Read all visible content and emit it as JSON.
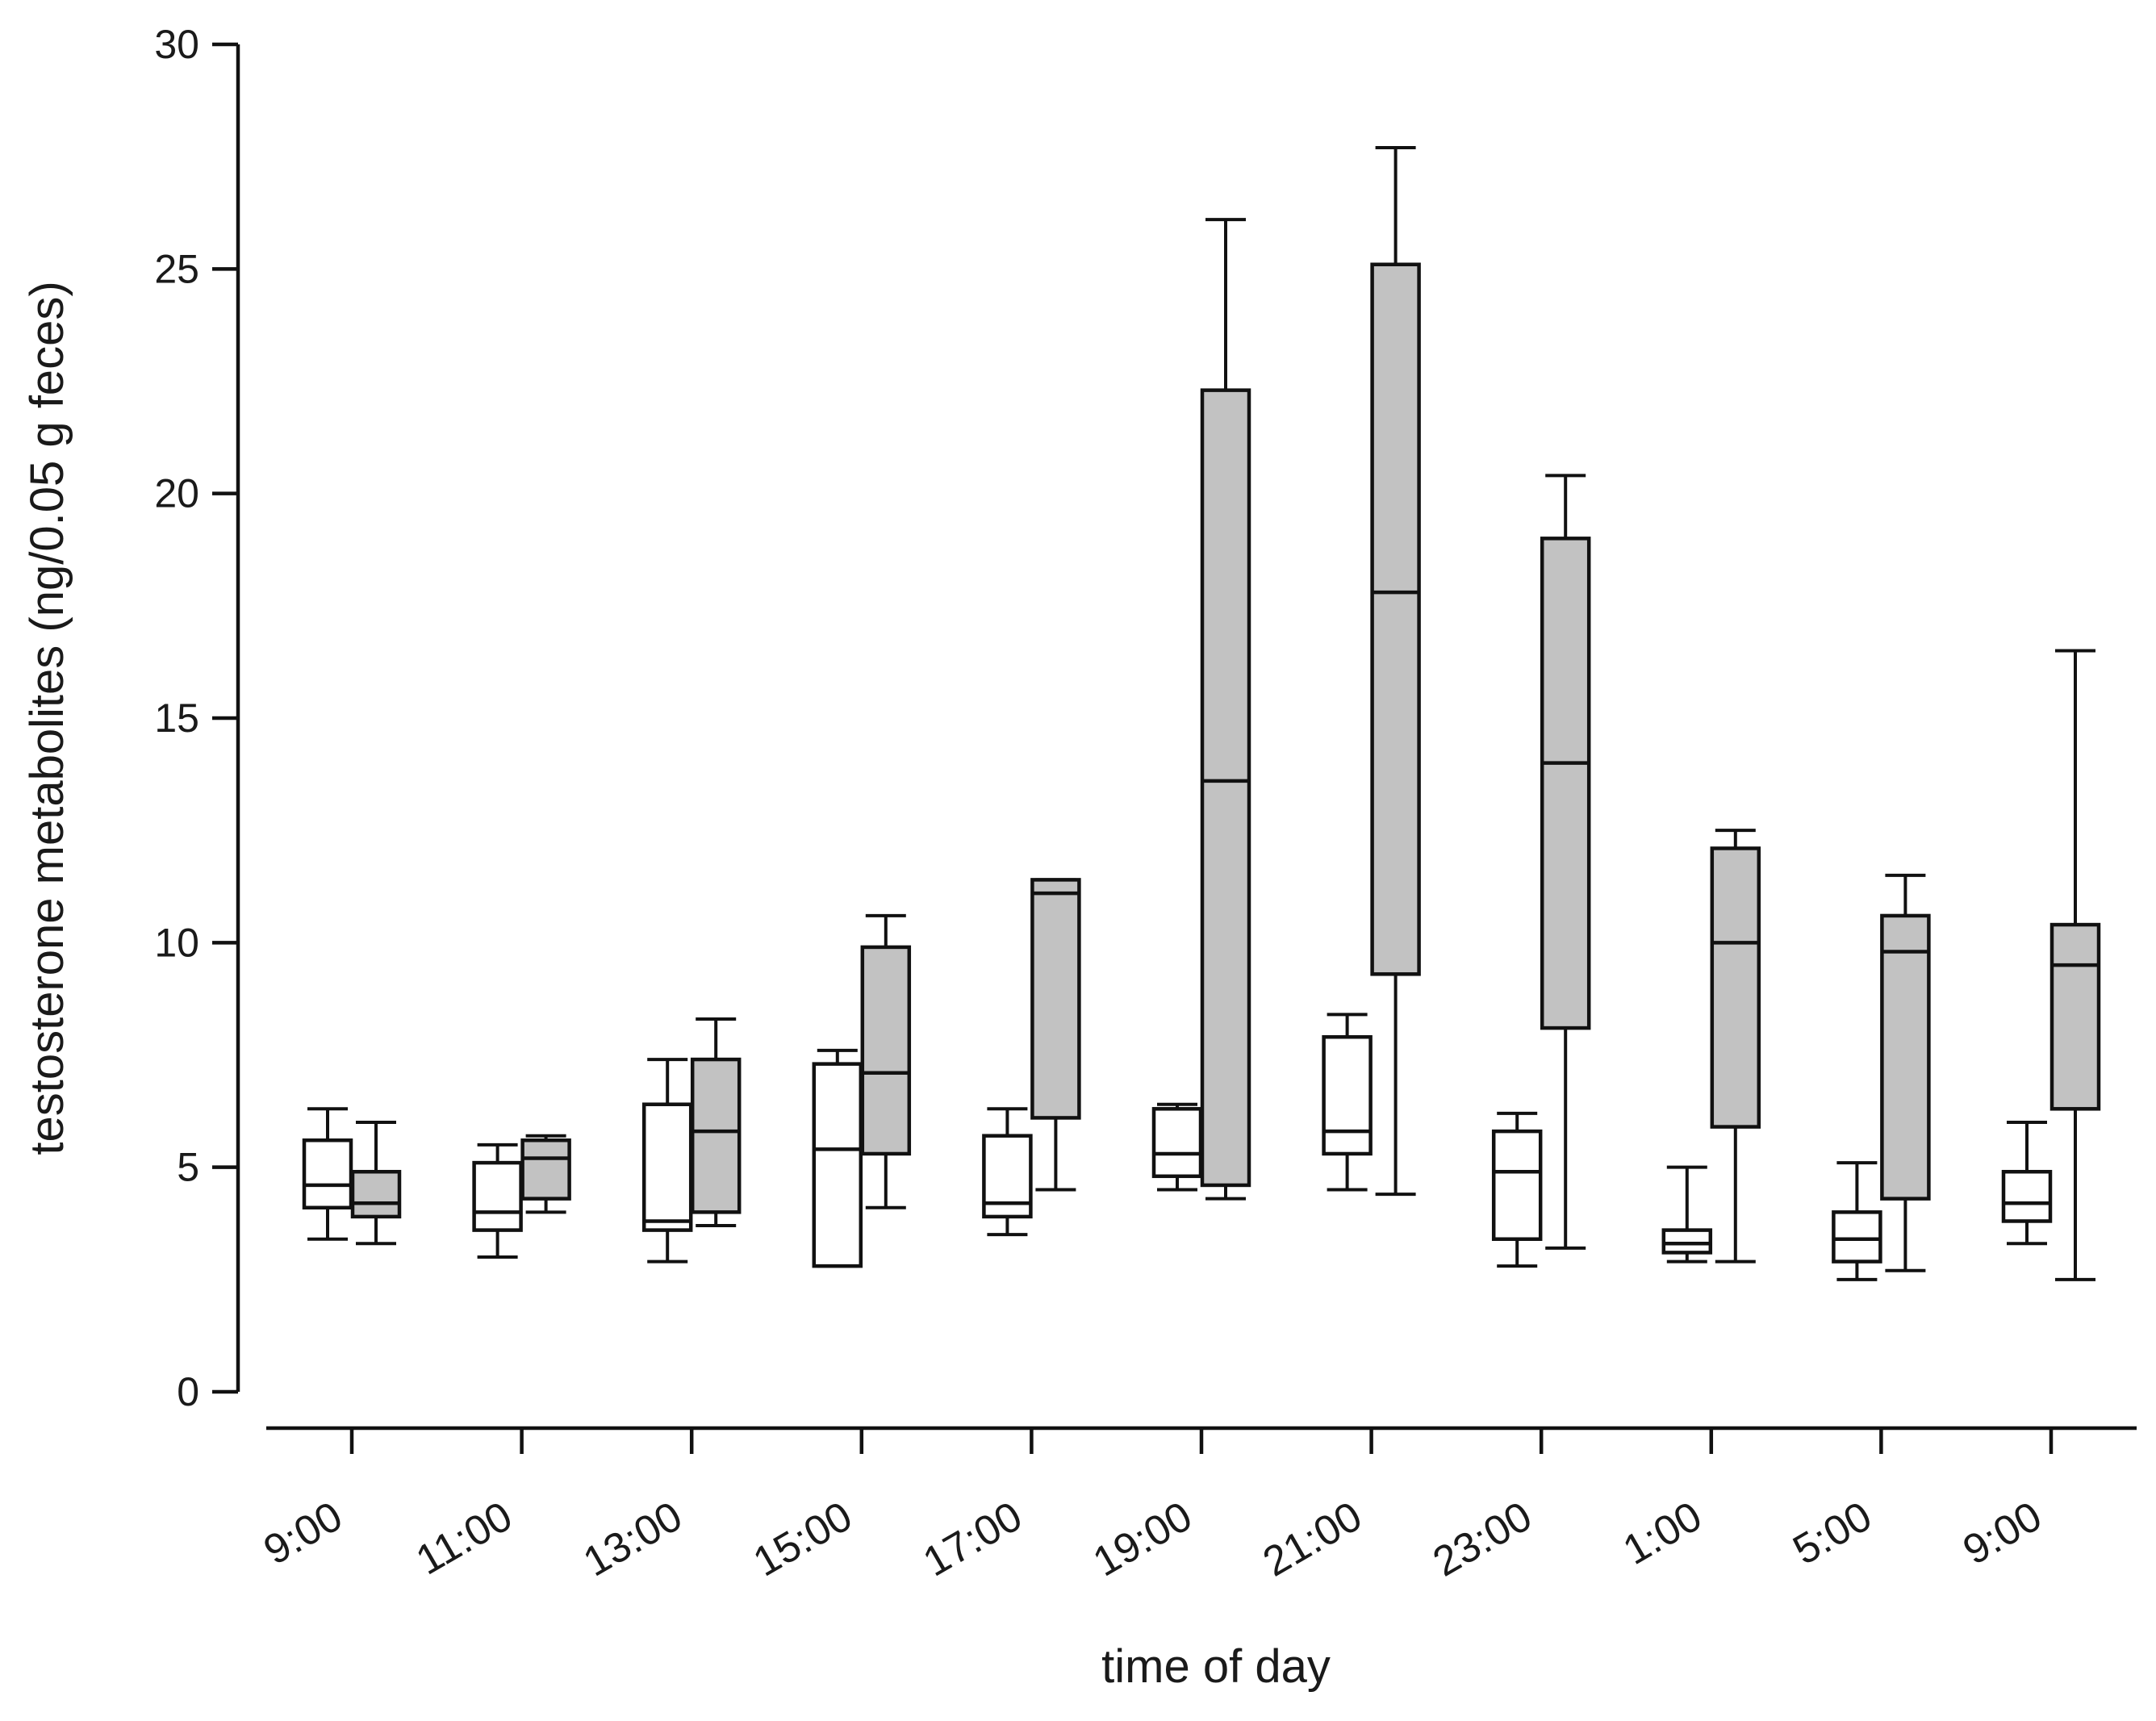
{
  "chart_data": {
    "type": "boxplot",
    "title": "",
    "xlabel": "time of day",
    "ylabel": "testosterone metabolites (ng/0.05 g feces)",
    "ylim": [
      0,
      30
    ],
    "yticks": [
      0,
      5,
      10,
      15,
      20,
      25,
      30
    ],
    "categories": [
      "9:00",
      "11:00",
      "13:00",
      "15:00",
      "17:00",
      "19:00",
      "21:00",
      "23:00",
      "1:00",
      "5:00",
      "9:00"
    ],
    "series": [
      {
        "name": "white",
        "fill": "#ffffff",
        "boxes": [
          {
            "min": 3.4,
            "q1": 4.1,
            "median": 4.6,
            "q3": 5.6,
            "max": 6.3
          },
          {
            "min": 3.0,
            "q1": 3.6,
            "median": 4.0,
            "q3": 5.1,
            "max": 5.5
          },
          {
            "min": 2.9,
            "q1": 3.6,
            "median": 3.8,
            "q3": 6.4,
            "max": 7.4
          },
          {
            "min": 2.8,
            "q1": 2.8,
            "median": 5.4,
            "q3": 7.3,
            "max": 7.6
          },
          {
            "min": 3.5,
            "q1": 3.9,
            "median": 4.2,
            "q3": 5.7,
            "max": 6.3
          },
          {
            "min": 4.5,
            "q1": 4.8,
            "median": 5.3,
            "q3": 6.3,
            "max": 6.4
          },
          {
            "min": 4.5,
            "q1": 5.3,
            "median": 5.8,
            "q3": 7.9,
            "max": 8.4
          },
          {
            "min": 2.8,
            "q1": 3.4,
            "median": 4.9,
            "q3": 5.8,
            "max": 6.2
          },
          {
            "min": 2.9,
            "q1": 3.1,
            "median": 3.3,
            "q3": 3.6,
            "max": 5.0
          },
          {
            "min": 2.5,
            "q1": 2.9,
            "median": 3.4,
            "q3": 4.0,
            "max": 5.1
          },
          {
            "min": 3.3,
            "q1": 3.8,
            "median": 4.2,
            "q3": 4.9,
            "max": 6.0
          }
        ]
      },
      {
        "name": "gray",
        "fill": "#c2c2c2",
        "boxes": [
          {
            "min": 3.3,
            "q1": 3.9,
            "median": 4.2,
            "q3": 4.9,
            "max": 6.0
          },
          {
            "min": 4.0,
            "q1": 4.3,
            "median": 5.2,
            "q3": 5.6,
            "max": 5.7
          },
          {
            "min": 3.7,
            "q1": 4.0,
            "median": 5.8,
            "q3": 7.4,
            "max": 8.3
          },
          {
            "min": 4.1,
            "q1": 5.3,
            "median": 7.1,
            "q3": 9.9,
            "max": 10.6
          },
          {
            "min": 4.5,
            "q1": 6.1,
            "median": 11.1,
            "q3": 11.4,
            "max": 11.4
          },
          {
            "min": 4.3,
            "q1": 4.6,
            "median": 13.6,
            "q3": 22.3,
            "max": 26.1
          },
          {
            "min": 4.4,
            "q1": 9.3,
            "median": 17.8,
            "q3": 25.1,
            "max": 27.7
          },
          {
            "min": 3.2,
            "q1": 8.1,
            "median": 14.0,
            "q3": 19.0,
            "max": 20.4
          },
          {
            "min": 2.9,
            "q1": 5.9,
            "median": 10.0,
            "q3": 12.1,
            "max": 12.5
          },
          {
            "min": 2.7,
            "q1": 4.3,
            "median": 9.8,
            "q3": 10.6,
            "max": 11.5
          },
          {
            "min": 2.5,
            "q1": 6.3,
            "median": 9.5,
            "q3": 10.4,
            "max": 16.5
          }
        ]
      }
    ],
    "legend": "none",
    "grid": false
  }
}
